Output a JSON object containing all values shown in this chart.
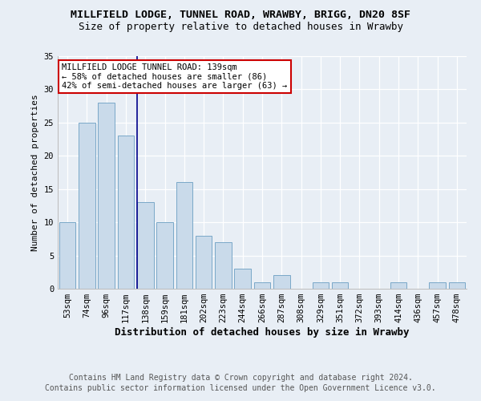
{
  "title": "MILLFIELD LODGE, TUNNEL ROAD, WRAWBY, BRIGG, DN20 8SF",
  "subtitle": "Size of property relative to detached houses in Wrawby",
  "xlabel": "Distribution of detached houses by size in Wrawby",
  "ylabel": "Number of detached properties",
  "categories": [
    "53sqm",
    "74sqm",
    "96sqm",
    "117sqm",
    "138sqm",
    "159sqm",
    "181sqm",
    "202sqm",
    "223sqm",
    "244sqm",
    "266sqm",
    "287sqm",
    "308sqm",
    "329sqm",
    "351sqm",
    "372sqm",
    "393sqm",
    "414sqm",
    "436sqm",
    "457sqm",
    "478sqm"
  ],
  "values": [
    10,
    25,
    28,
    23,
    13,
    10,
    16,
    8,
    7,
    3,
    1,
    2,
    0,
    1,
    1,
    0,
    0,
    1,
    0,
    1,
    1
  ],
  "bar_color": "#c9daea",
  "bar_edge_color": "#7aa8c8",
  "subject_bin": 4,
  "subject_label": "MILLFIELD LODGE TUNNEL ROAD: 139sqm",
  "arrow_left_text": "← 58% of detached houses are smaller (86)",
  "arrow_right_text": "42% of semi-detached houses are larger (63) →",
  "annotation_box_color": "#ffffff",
  "annotation_box_edge_color": "#cc0000",
  "subject_line_color": "#00008b",
  "ylim": [
    0,
    35
  ],
  "yticks": [
    0,
    5,
    10,
    15,
    20,
    25,
    30,
    35
  ],
  "footer1": "Contains HM Land Registry data © Crown copyright and database right 2024.",
  "footer2": "Contains public sector information licensed under the Open Government Licence v3.0.",
  "bg_color": "#e8eef5",
  "plot_bg_color": "#e8eef5",
  "grid_color": "#ffffff",
  "title_fontsize": 9.5,
  "subtitle_fontsize": 9,
  "xlabel_fontsize": 9,
  "ylabel_fontsize": 8,
  "tick_fontsize": 7.5,
  "footer_fontsize": 7,
  "annot_fontsize": 7.5
}
